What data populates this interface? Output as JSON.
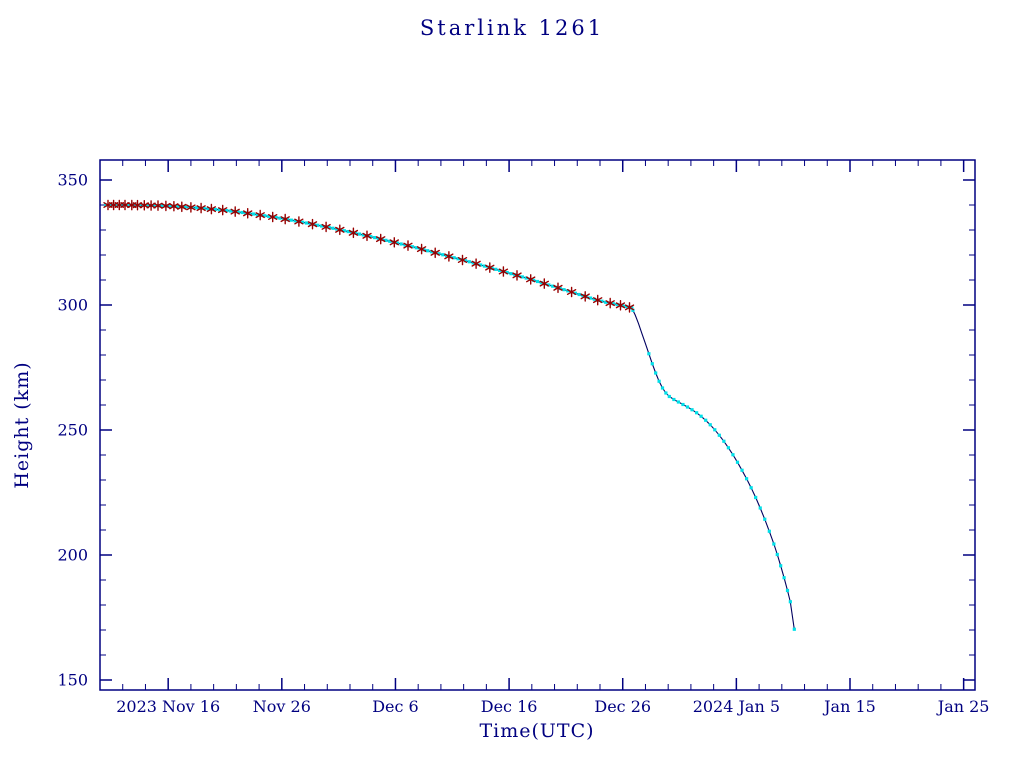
{
  "chart_data": {
    "type": "line",
    "title": "Starlink 1261",
    "xlabel": "Time(UTC)",
    "ylabel": "Height (km)",
    "x_unit": "days since 2023 Nov 16 00:00 UTC",
    "x_axis": {
      "min": -6,
      "max": 71,
      "minor_tick_days": 2,
      "major_ticks": [
        {
          "day": 0,
          "label": "2023 Nov 16"
        },
        {
          "day": 10,
          "label": "Nov 26"
        },
        {
          "day": 20,
          "label": "Dec 6"
        },
        {
          "day": 30,
          "label": "Dec 16"
        },
        {
          "day": 40,
          "label": "Dec 26"
        },
        {
          "day": 50,
          "label": "2024 Jan 5"
        },
        {
          "day": 60,
          "label": "Jan 15"
        },
        {
          "day": 70,
          "label": "Jan 25"
        }
      ]
    },
    "y_axis": {
      "min": 146,
      "max": 358,
      "minor_tick_km": 10,
      "major_ticks": [
        150,
        200,
        250,
        300,
        350
      ]
    },
    "colors": {
      "axis": "#000080",
      "text": "#000080",
      "line": "#000060",
      "cyan_marker": "#00E0E8",
      "red_marker": "#990000",
      "background": "#ffffff"
    },
    "series": [
      {
        "name": "orbital-height-km",
        "points": [
          [
            -5.5,
            340
          ],
          [
            -4.5,
            340
          ],
          [
            -3.5,
            340
          ],
          [
            -2.5,
            339.9
          ],
          [
            -1.5,
            339.8
          ],
          [
            -0.5,
            339.7
          ],
          [
            0.5,
            339.5
          ],
          [
            1.5,
            339.2
          ],
          [
            2.5,
            338.9
          ],
          [
            3.5,
            338.5
          ],
          [
            4.5,
            338.1
          ],
          [
            5.5,
            337.6
          ],
          [
            6.5,
            337.0
          ],
          [
            7.5,
            336.4
          ],
          [
            8.5,
            335.7
          ],
          [
            9.5,
            335.0
          ],
          [
            10.5,
            334.2
          ],
          [
            11.5,
            333.4
          ],
          [
            12.5,
            332.5
          ],
          [
            13.5,
            331.6
          ],
          [
            14.5,
            330.7
          ],
          [
            15.5,
            329.7
          ],
          [
            16.5,
            328.7
          ],
          [
            17.5,
            327.7
          ],
          [
            18.5,
            326.6
          ],
          [
            19.5,
            325.5
          ],
          [
            20.5,
            324.4
          ],
          [
            21.5,
            323.3
          ],
          [
            22.5,
            322.1
          ],
          [
            23.5,
            320.9
          ],
          [
            24.5,
            319.7
          ],
          [
            25.5,
            318.5
          ],
          [
            26.5,
            317.3
          ],
          [
            27.5,
            316.0
          ],
          [
            28.5,
            314.7
          ],
          [
            29.5,
            313.4
          ],
          [
            30.5,
            312.1
          ],
          [
            31.5,
            310.8
          ],
          [
            32.5,
            309.4
          ],
          [
            33.5,
            308.0
          ],
          [
            34.5,
            306.6
          ],
          [
            35.5,
            305.2
          ],
          [
            36.5,
            303.7
          ],
          [
            37.5,
            302.3
          ],
          [
            38.5,
            301.1
          ],
          [
            39.5,
            300.2
          ],
          [
            40.2,
            299.5
          ],
          [
            40.8,
            298.8
          ],
          [
            41.1,
            296.0
          ],
          [
            41.4,
            292.5
          ],
          [
            41.7,
            288.5
          ],
          [
            42.0,
            284.5
          ],
          [
            42.3,
            280.5
          ],
          [
            42.6,
            276.5
          ],
          [
            42.9,
            272.8
          ],
          [
            43.2,
            269.5
          ],
          [
            43.5,
            266.8
          ],
          [
            43.8,
            264.8
          ],
          [
            44.1,
            263.4
          ],
          [
            44.5,
            262.2
          ],
          [
            44.9,
            261.2
          ],
          [
            45.3,
            260.2
          ],
          [
            45.7,
            259.2
          ],
          [
            46.1,
            258.1
          ],
          [
            46.5,
            256.9
          ],
          [
            46.9,
            255.5
          ],
          [
            47.3,
            253.9
          ],
          [
            47.7,
            252.1
          ],
          [
            48.1,
            250.1
          ],
          [
            48.5,
            247.9
          ],
          [
            48.9,
            245.5
          ],
          [
            49.3,
            242.9
          ],
          [
            49.7,
            240.1
          ],
          [
            50.1,
            237.1
          ],
          [
            50.5,
            233.9
          ],
          [
            50.9,
            230.5
          ],
          [
            51.3,
            226.9
          ],
          [
            51.7,
            223.0
          ],
          [
            52.1,
            218.8
          ],
          [
            52.5,
            214.3
          ],
          [
            52.9,
            209.5
          ],
          [
            53.3,
            204.4
          ],
          [
            53.6,
            200.2
          ],
          [
            53.9,
            195.7
          ],
          [
            54.2,
            190.9
          ],
          [
            54.5,
            185.8
          ],
          [
            54.75,
            181.3
          ],
          [
            55.1,
            170.3
          ]
        ]
      }
    ],
    "red_marker_days": [
      -5.3,
      -4.8,
      -4.3,
      -3.8,
      -3.2,
      -2.7,
      -2.1,
      -1.5,
      -0.9,
      -0.2,
      0.5,
      1.2,
      2.0,
      2.9,
      3.8,
      4.8,
      5.9,
      7.0,
      8.1,
      9.2,
      10.3,
      11.5,
      12.7,
      13.9,
      15.1,
      16.3,
      17.5,
      18.7,
      19.9,
      21.1,
      22.3,
      23.5,
      24.7,
      25.9,
      27.1,
      28.3,
      29.5,
      30.7,
      31.9,
      33.1,
      34.3,
      35.5,
      36.7,
      37.8,
      38.9,
      39.8,
      40.6
    ],
    "marker_style": {
      "dense_until_day": 41,
      "subdivisions": 3
    },
    "cyan_gap_ranges": [
      [
        40.9,
        42.2
      ],
      [
        54.8,
        55.05
      ]
    ],
    "legend": null,
    "grid": false
  }
}
